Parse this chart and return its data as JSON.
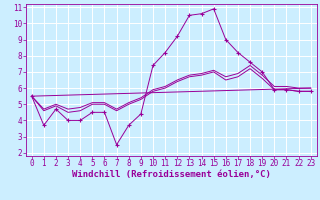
{
  "xlabel": "Windchill (Refroidissement éolien,°C)",
  "xlim": [
    -0.5,
    23.5
  ],
  "ylim": [
    1.8,
    11.2
  ],
  "xticks": [
    0,
    1,
    2,
    3,
    4,
    5,
    6,
    7,
    8,
    9,
    10,
    11,
    12,
    13,
    14,
    15,
    16,
    17,
    18,
    19,
    20,
    21,
    22,
    23
  ],
  "yticks": [
    2,
    3,
    4,
    5,
    6,
    7,
    8,
    9,
    10,
    11
  ],
  "background_color": "#cceeff",
  "line_color": "#990099",
  "grid_color": "#ffffff",
  "line1_x": [
    0,
    1,
    2,
    3,
    4,
    5,
    6,
    7,
    8,
    9,
    10,
    11,
    12,
    13,
    14,
    15,
    16,
    17,
    18,
    19,
    20,
    21,
    22,
    23
  ],
  "line1_y": [
    5.5,
    3.7,
    4.7,
    4.0,
    4.0,
    4.5,
    4.5,
    2.5,
    3.7,
    4.4,
    7.4,
    8.2,
    9.2,
    10.5,
    10.6,
    10.9,
    9.0,
    8.2,
    7.6,
    7.0,
    5.9,
    5.9,
    5.8,
    5.8
  ],
  "line2_x": [
    0,
    1,
    2,
    3,
    4,
    5,
    6,
    7,
    8,
    9,
    10,
    11,
    12,
    13,
    14,
    15,
    16,
    17,
    18,
    19,
    20,
    21,
    22,
    23
  ],
  "line2_y": [
    5.5,
    4.6,
    4.9,
    4.5,
    4.6,
    5.0,
    5.0,
    4.6,
    5.0,
    5.3,
    5.8,
    6.0,
    6.4,
    6.7,
    6.8,
    7.0,
    6.5,
    6.7,
    7.2,
    6.6,
    5.9,
    5.9,
    5.8,
    5.8
  ],
  "line3_x": [
    0,
    1,
    2,
    3,
    4,
    5,
    6,
    7,
    8,
    9,
    10,
    11,
    12,
    13,
    14,
    15,
    16,
    17,
    18,
    19,
    20,
    21,
    22,
    23
  ],
  "line3_y": [
    5.5,
    4.7,
    5.0,
    4.7,
    4.8,
    5.1,
    5.1,
    4.7,
    5.1,
    5.4,
    5.9,
    6.1,
    6.5,
    6.8,
    6.9,
    7.1,
    6.7,
    6.9,
    7.4,
    6.8,
    6.1,
    6.1,
    6.0,
    6.0
  ],
  "line4_x": [
    0,
    23
  ],
  "line4_y": [
    5.5,
    6.0
  ],
  "font_size_tick": 5.5,
  "font_size_xlabel": 6.5
}
